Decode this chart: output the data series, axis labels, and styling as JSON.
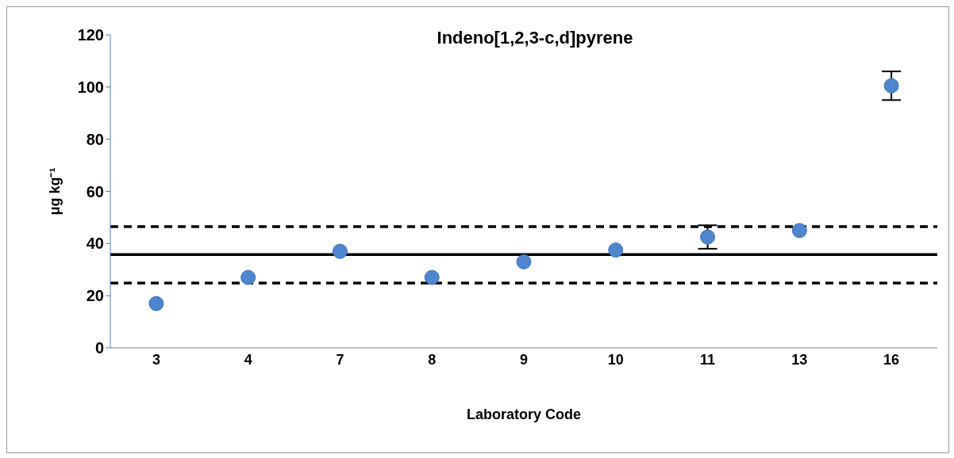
{
  "chart_data": {
    "type": "scatter",
    "title": "Indeno[1,2,3-c,d]pyrene",
    "xlabel": "Laboratory Code",
    "ylabel": "μg kg⁻¹",
    "categories": [
      "3",
      "4",
      "7",
      "8",
      "9",
      "10",
      "11",
      "13",
      "16"
    ],
    "series": [
      {
        "color": "#4f86d0",
        "values": [
          17,
          27,
          37,
          27,
          33,
          37.5,
          42.5,
          45,
          100.5
        ],
        "errors": [
          null,
          null,
          null,
          null,
          null,
          null,
          [
            38,
            47
          ],
          null,
          [
            95,
            106
          ]
        ]
      }
    ],
    "ylim": [
      0,
      120
    ],
    "yticks": [
      0,
      20,
      40,
      60,
      80,
      100,
      120
    ],
    "marker": "circle",
    "ref_lines": [
      {
        "axis": "y",
        "value": 35.8,
        "color": "#000000",
        "line_style": "solid"
      },
      {
        "axis": "y",
        "value": 46.5,
        "color": "#000000",
        "line_style": "dashed"
      },
      {
        "axis": "y",
        "value": 24.8,
        "color": "#000000",
        "line_style": "dashed"
      }
    ]
  }
}
